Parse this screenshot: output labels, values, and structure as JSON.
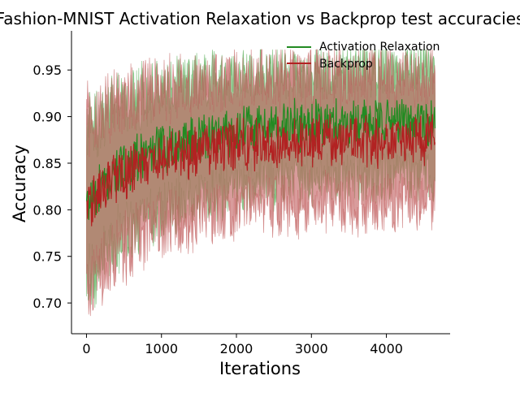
{
  "chart_data": {
    "type": "line",
    "title": "Fashion-MNIST Activation Relaxation vs Backprop test accuracies",
    "xlabel": "Iterations",
    "ylabel": "Accuracy",
    "xlim": [
      -200,
      4850
    ],
    "ylim": [
      0.667,
      0.992
    ],
    "x_ticks": [
      0,
      1000,
      2000,
      3000,
      4000
    ],
    "y_ticks": [
      0.7,
      0.75,
      0.8,
      0.85,
      0.9,
      0.95
    ],
    "x_tick_labels": [
      "0",
      "1000",
      "2000",
      "3000",
      "4000"
    ],
    "y_tick_labels": [
      "0.70",
      "0.75",
      "0.80",
      "0.85",
      "0.90",
      "0.95"
    ],
    "grid": false,
    "legend_position": "top-right",
    "series": [
      {
        "name": "Activation Relaxation",
        "color": "#228b22",
        "band_color": "#4aa84a",
        "band_opacity": 0.55,
        "x_end": 4650,
        "mean_start": 0.805,
        "mean_plateau": 0.895,
        "spread_start": 0.12,
        "spread_plateau": 0.085,
        "rate": 900
      },
      {
        "name": "Backprop",
        "color": "#b22222",
        "band_color": "#c05a5a",
        "band_opacity": 0.6,
        "x_end": 4650,
        "mean_start": 0.805,
        "mean_plateau": 0.875,
        "spread_start": 0.13,
        "spread_plateau": 0.1,
        "rate": 800
      }
    ]
  }
}
